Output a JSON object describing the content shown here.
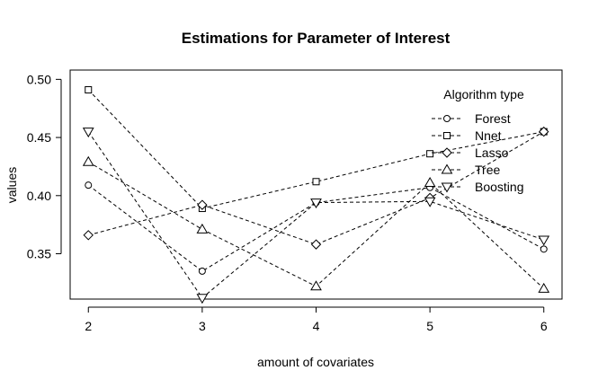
{
  "chart_data": {
    "type": "line",
    "title": "Estimations for Parameter of Interest",
    "xlabel": "amount of covariates",
    "ylabel": "values",
    "x": [
      2,
      3,
      4,
      5,
      6
    ],
    "x_ticks": [
      "2",
      "3",
      "4",
      "5",
      "6"
    ],
    "y_ticks": [
      "0.35",
      "0.40",
      "0.45",
      "0.50"
    ],
    "y_tick_values": [
      0.35,
      0.4,
      0.45,
      0.5
    ],
    "xlim": [
      1.84,
      6.16
    ],
    "ylim": [
      0.311,
      0.508
    ],
    "grid": false,
    "line_style": "dashed",
    "legend": {
      "title": "Algorithm type",
      "placement": "top-right"
    },
    "series": [
      {
        "name": "Forest",
        "marker": "circle",
        "values": [
          0.409,
          0.335,
          0.394,
          0.407,
          0.354
        ]
      },
      {
        "name": "Nnet",
        "marker": "square",
        "values": [
          0.491,
          0.389,
          0.412,
          0.436,
          0.455
        ]
      },
      {
        "name": "Lasso",
        "marker": "diamond",
        "values": [
          0.366,
          0.392,
          0.358,
          0.398,
          0.455
        ]
      },
      {
        "name": "Tree",
        "marker": "triangle-up",
        "values": [
          0.429,
          0.371,
          0.322,
          0.411,
          0.32
        ]
      },
      {
        "name": "Boosting",
        "marker": "triangle-down",
        "values": [
          0.455,
          0.312,
          0.394,
          0.395,
          0.362
        ]
      }
    ]
  }
}
